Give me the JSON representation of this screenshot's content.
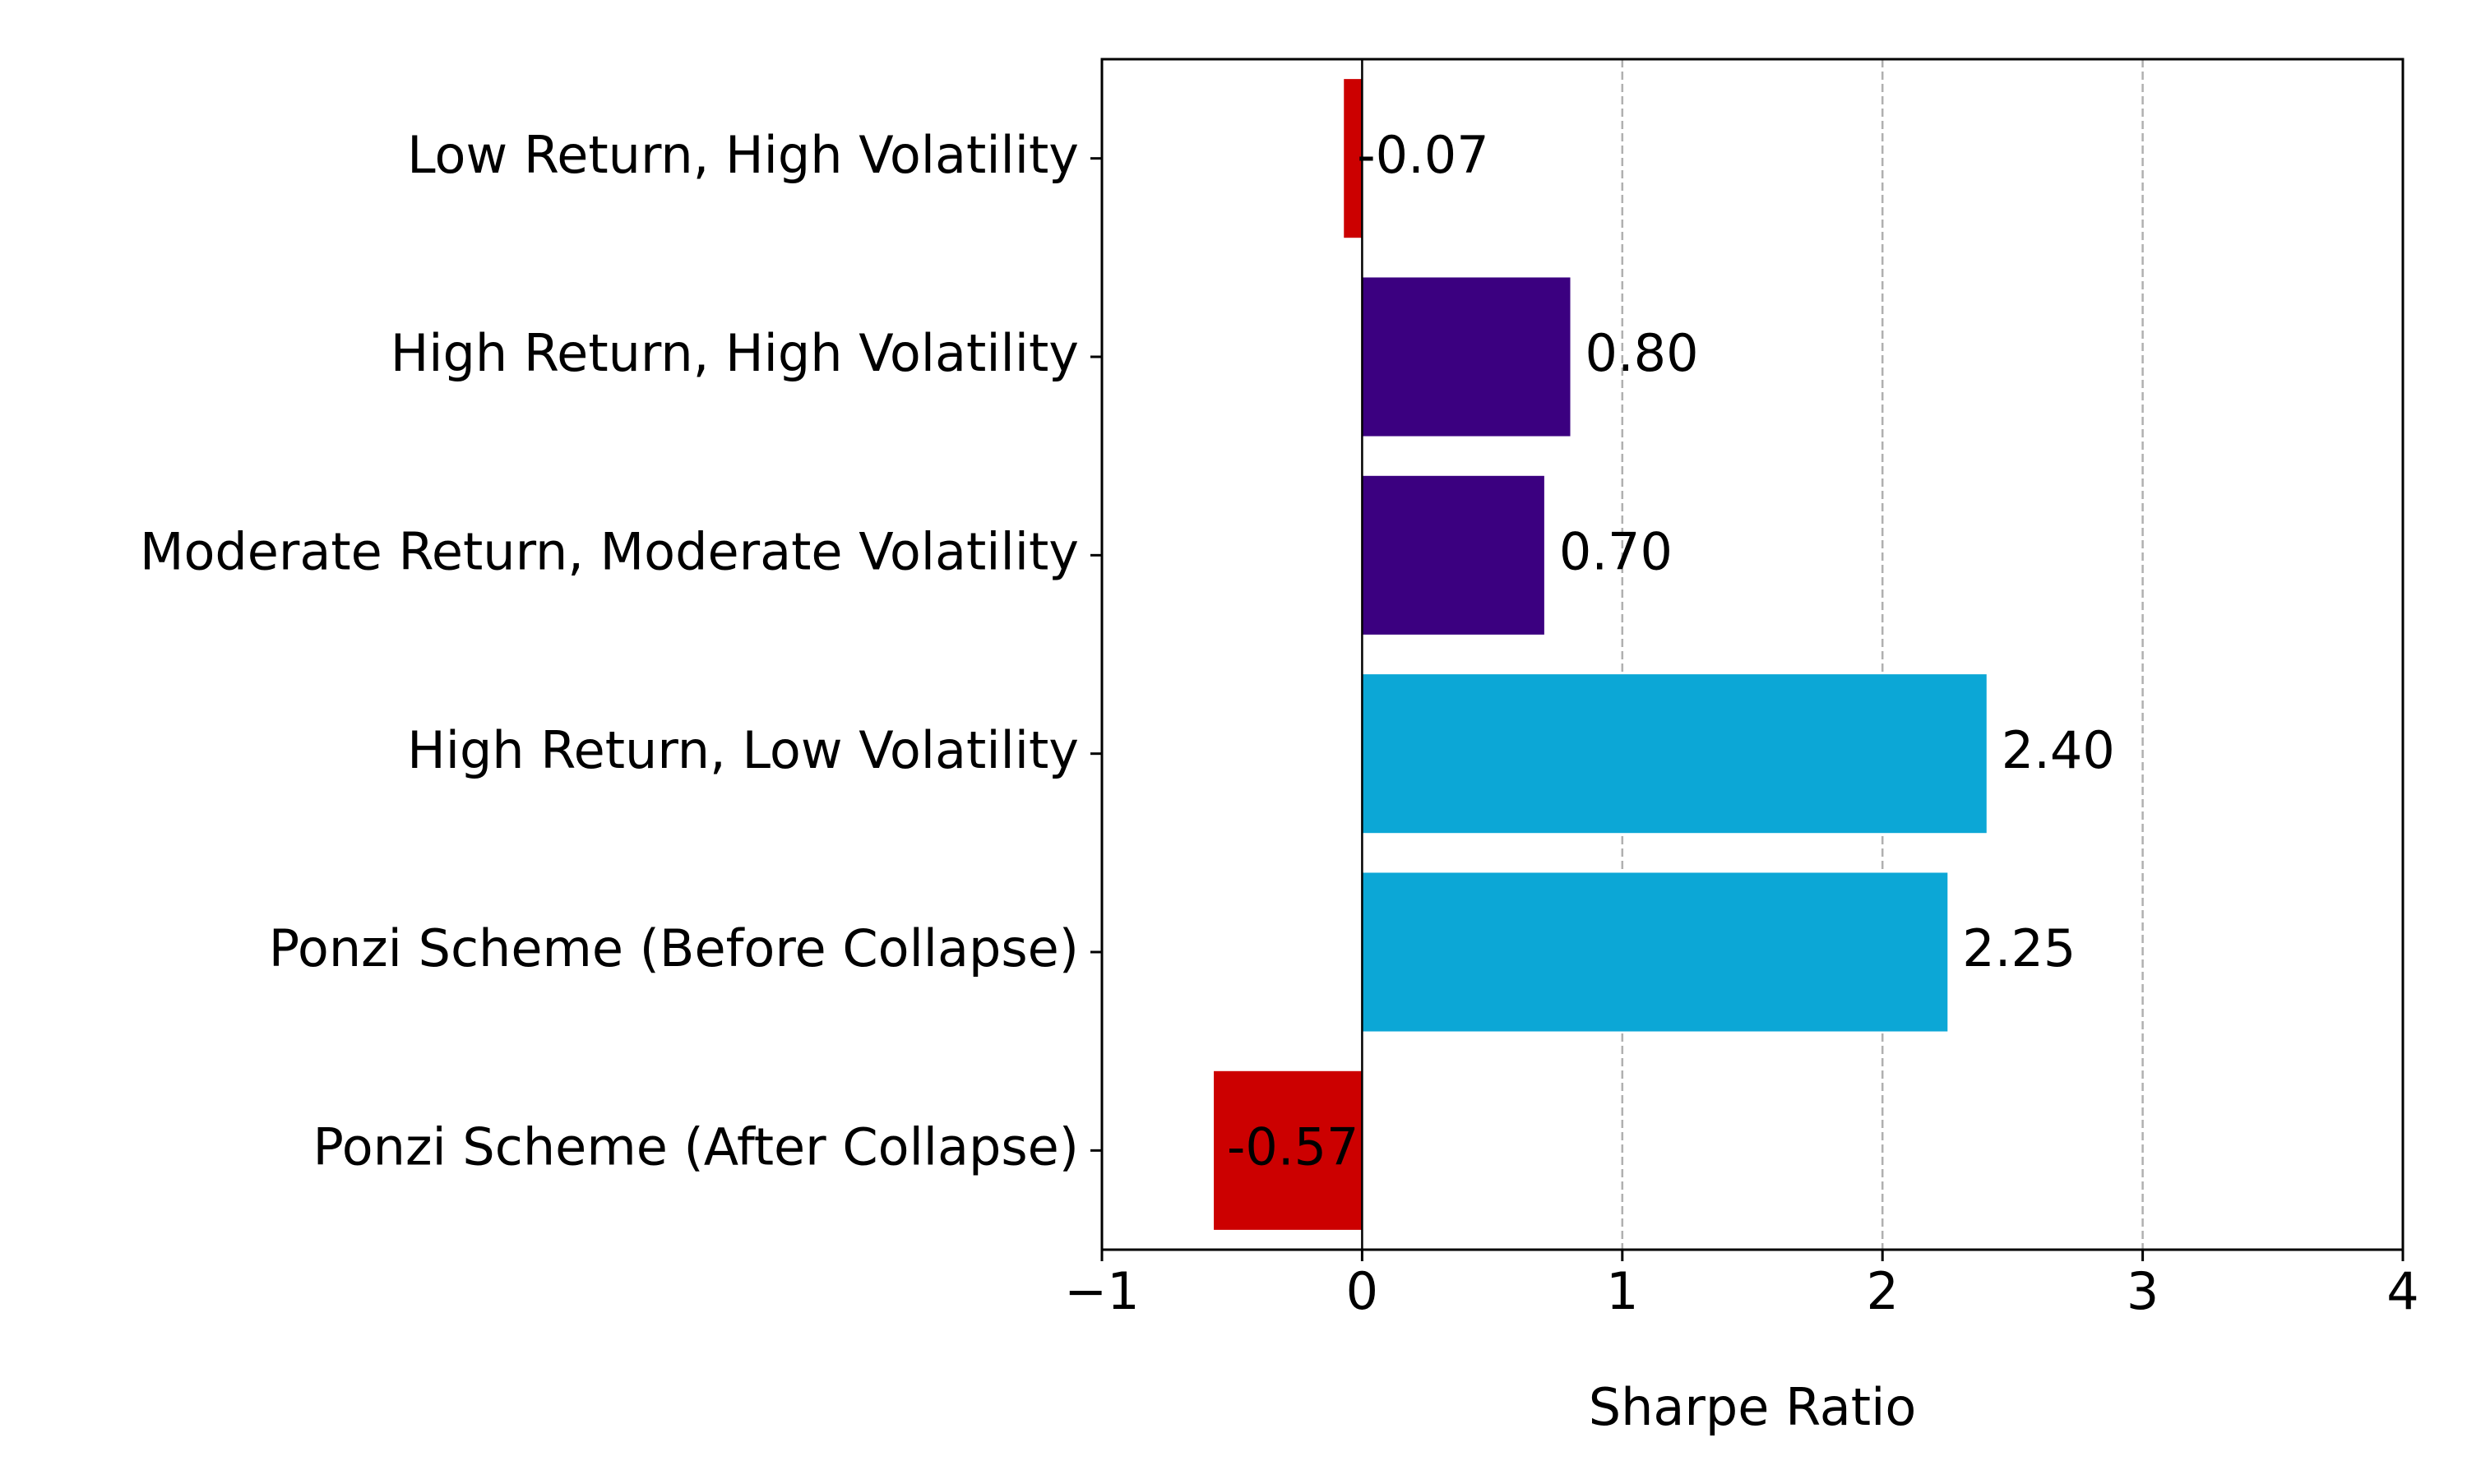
{
  "chart_data": {
    "type": "bar",
    "orientation": "horizontal",
    "categories": [
      "Low Return, High Volatility",
      "High Return, High Volatility",
      "Moderate Return, Moderate Volatility",
      "High Return, Low Volatility",
      "Ponzi Scheme (Before Collapse)",
      "Ponzi Scheme (After Collapse)"
    ],
    "values": [
      -0.07,
      0.8,
      0.7,
      2.4,
      2.25,
      -0.57
    ],
    "value_labels": [
      "-0.07",
      "0.80",
      "0.70",
      "2.40",
      "2.25",
      "-0.57"
    ],
    "colors": [
      "#cc0000",
      "#3b0080",
      "#3b0080",
      "#0ca7d6",
      "#0ca7d6",
      "#cc0000"
    ],
    "xlabel": "Sharpe Ratio",
    "ylabel": "",
    "title": "",
    "xlim": [
      -1,
      4
    ],
    "xticks": [
      -1,
      0,
      1,
      2,
      3,
      4
    ],
    "xtick_labels": [
      "−1",
      "0",
      "1",
      "2",
      "3",
      "4"
    ],
    "grid": "x-axis dashed",
    "zero_line": true,
    "legend": "none"
  }
}
